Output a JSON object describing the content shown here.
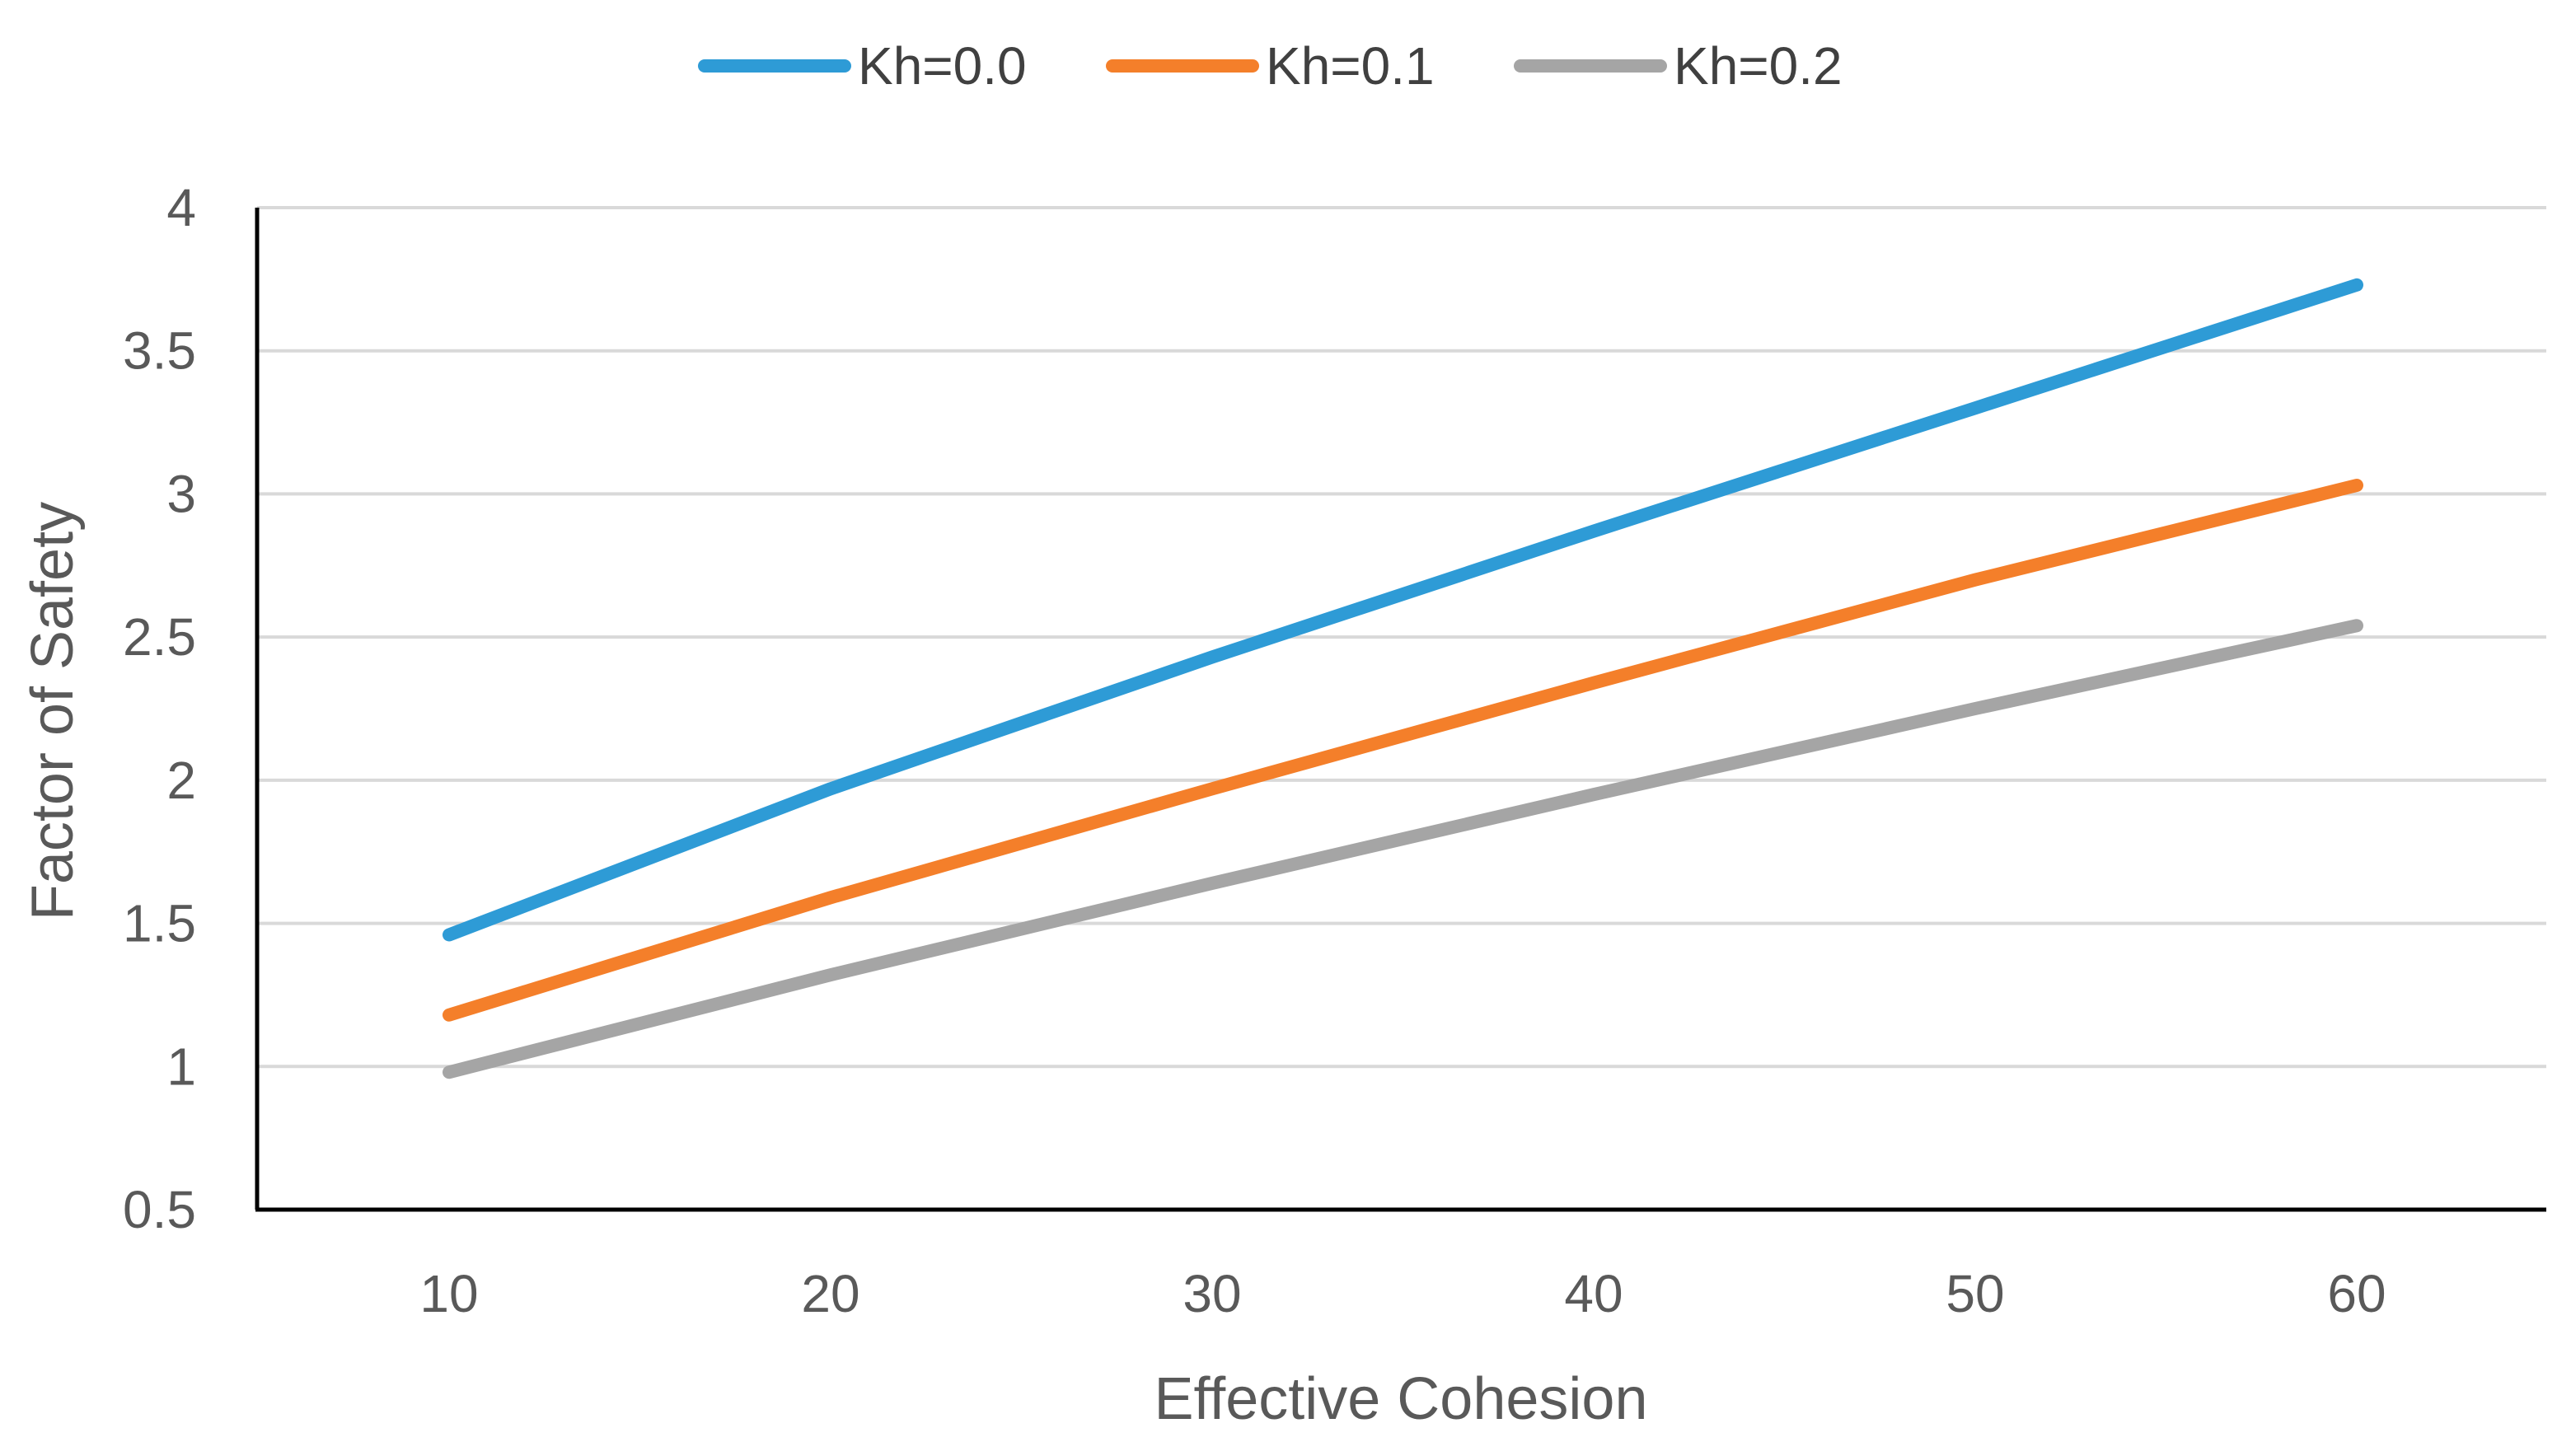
{
  "chart_data": {
    "type": "line",
    "title": "",
    "xlabel": "Effective Cohesion",
    "ylabel": "Factor of Safety",
    "x": [
      10,
      20,
      30,
      40,
      50,
      60
    ],
    "x_tick_labels": [
      "10",
      "20",
      "30",
      "40",
      "50",
      "60"
    ],
    "ylim": [
      0.5,
      4
    ],
    "y_ticks": [
      0.5,
      1,
      1.5,
      2,
      2.5,
      3,
      3.5,
      4
    ],
    "y_tick_labels": [
      "0.5",
      "1",
      "1.5",
      "2",
      "2.5",
      "3",
      "3.5",
      "4"
    ],
    "grid": true,
    "legend_position": "top-center",
    "series": [
      {
        "name": "Kh=0.0",
        "color": "#2E9BD6",
        "values": [
          1.46,
          1.97,
          2.43,
          2.87,
          3.3,
          3.73
        ]
      },
      {
        "name": "Kh=0.1",
        "color": "#F47F2A",
        "values": [
          1.18,
          1.59,
          1.97,
          2.34,
          2.7,
          3.03
        ]
      },
      {
        "name": "Kh=0.2",
        "color": "#A5A5A5",
        "values": [
          0.98,
          1.32,
          1.64,
          1.95,
          2.25,
          2.54
        ]
      }
    ]
  }
}
